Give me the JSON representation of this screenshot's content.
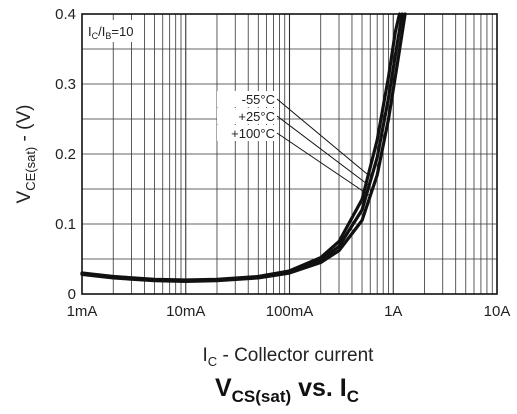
{
  "chart_data": {
    "type": "line",
    "title": "V_CS(sat) vs. I_C",
    "title_parts": {
      "main": "V",
      "sub1": "CS(sat)",
      "mid": " vs. I",
      "sub2": "C"
    },
    "xlabel": "I_C - Collector current",
    "xlabel_parts": {
      "main": "I",
      "sub": "C",
      "rest": " - Collector current"
    },
    "ylabel": "V_CE(sat) - (V)",
    "ylabel_parts": {
      "main": "V",
      "sub": "CE(sat)",
      "rest": " - (V)"
    },
    "x_scale": "log",
    "xlim": [
      0.001,
      10
    ],
    "ylim": [
      0,
      0.4
    ],
    "x_ticks": [
      {
        "value": 0.001,
        "label": "1mA"
      },
      {
        "value": 0.01,
        "label": "10mA"
      },
      {
        "value": 0.1,
        "label": "100mA"
      },
      {
        "value": 1,
        "label": "1A"
      },
      {
        "value": 10,
        "label": "10A"
      }
    ],
    "y_ticks": [
      {
        "value": 0,
        "label": "0"
      },
      {
        "value": 0.1,
        "label": "0.1"
      },
      {
        "value": 0.2,
        "label": "0.2"
      },
      {
        "value": 0.3,
        "label": "0.3"
      },
      {
        "value": 0.4,
        "label": "0.4"
      }
    ],
    "grid": true,
    "condition": {
      "main": "I",
      "sub1": "C",
      "mid": "/I",
      "sub2": "B",
      "rest": "=10"
    },
    "series": [
      {
        "name": "-55°C",
        "x": [
          0.001,
          0.002,
          0.005,
          0.01,
          0.02,
          0.05,
          0.1,
          0.2,
          0.3,
          0.5,
          0.7,
          0.9,
          1.05,
          1.15
        ],
        "y": [
          0.03,
          0.025,
          0.021,
          0.02,
          0.021,
          0.025,
          0.033,
          0.052,
          0.075,
          0.135,
          0.22,
          0.31,
          0.375,
          0.4
        ]
      },
      {
        "name": "+25°C",
        "x": [
          0.001,
          0.002,
          0.005,
          0.01,
          0.02,
          0.05,
          0.1,
          0.2,
          0.3,
          0.5,
          0.7,
          0.9,
          1.1,
          1.22
        ],
        "y": [
          0.029,
          0.024,
          0.02,
          0.019,
          0.02,
          0.024,
          0.031,
          0.048,
          0.068,
          0.12,
          0.195,
          0.28,
          0.36,
          0.4
        ]
      },
      {
        "name": "+100°C",
        "x": [
          0.001,
          0.002,
          0.005,
          0.01,
          0.02,
          0.05,
          0.1,
          0.2,
          0.3,
          0.5,
          0.7,
          0.9,
          1.1,
          1.3
        ],
        "y": [
          0.028,
          0.023,
          0.019,
          0.018,
          0.019,
          0.023,
          0.03,
          0.045,
          0.062,
          0.105,
          0.17,
          0.25,
          0.33,
          0.4
        ]
      }
    ]
  }
}
